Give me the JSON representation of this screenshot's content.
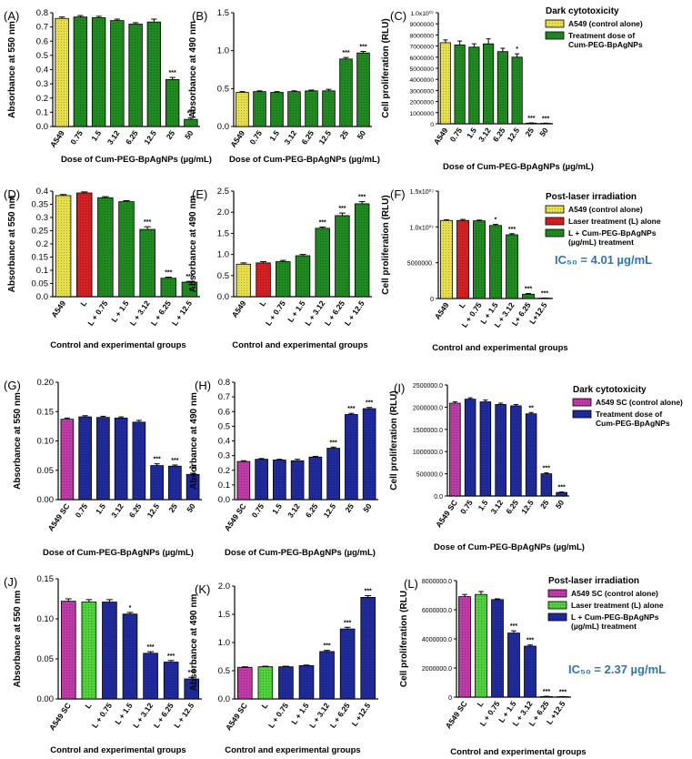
{
  "colors": {
    "yellow": "#e8e04a",
    "green": "#1f8a1f",
    "lightgreen": "#4fd23a",
    "red": "#d42020",
    "blue": "#1f2a9c",
    "magenta": "#c03aa8",
    "ic50": "#2e75b6"
  },
  "chart_data": [
    {
      "id": "A",
      "type": "bar",
      "panel": "(A)",
      "ylabel": "Absorbance at 550 nm",
      "xlabel": "Dose of Cum-PEG-BpAgNPs (µg/mL)",
      "categories": [
        "A549",
        "0.75",
        "1.5",
        "3.12",
        "6.25",
        "12.5",
        "25",
        "50"
      ],
      "values": [
        0.76,
        0.77,
        0.765,
        0.745,
        0.72,
        0.735,
        0.33,
        0.05
      ],
      "errors": [
        0.01,
        0.01,
        0.01,
        0.01,
        0.01,
        0.02,
        0.015,
        0.01
      ],
      "colors": [
        "yellow",
        "green",
        "green",
        "green",
        "green",
        "green",
        "green",
        "green"
      ],
      "sig": [
        "",
        "",
        "",
        "",
        "",
        "",
        "***",
        "***"
      ],
      "ylim": [
        0,
        0.8
      ],
      "yticks": [
        "0.0",
        "0.1",
        "0.2",
        "0.3",
        "0.4",
        "0.5",
        "0.6",
        "0.7",
        "0.8"
      ]
    },
    {
      "id": "B",
      "type": "bar",
      "panel": "(B)",
      "ylabel": "Absorbance at 490 nm",
      "xlabel": "Dose of Cum-PEG-BpAgNPs (µg/mL)",
      "categories": [
        "A549",
        "0.75",
        "1.5",
        "3.12",
        "6.25",
        "12.5",
        "25",
        "50"
      ],
      "values": [
        0.45,
        0.46,
        0.45,
        0.46,
        0.47,
        0.47,
        0.89,
        0.97
      ],
      "errors": [
        0.01,
        0.01,
        0.01,
        0.01,
        0.01,
        0.02,
        0.02,
        0.02
      ],
      "colors": [
        "yellow",
        "green",
        "green",
        "green",
        "green",
        "green",
        "green",
        "green"
      ],
      "sig": [
        "",
        "",
        "",
        "",
        "",
        "",
        "***",
        "***"
      ],
      "ylim": [
        0,
        1.5
      ],
      "yticks": [
        "0.0",
        "0.5",
        "1.0",
        "1.5"
      ]
    },
    {
      "id": "C",
      "type": "bar",
      "panel": "(C)",
      "ylabel": "Cell proliferation (RLU)",
      "xlabel": "Dose of Cum-PEG-BpAgNPs (µg/mL)",
      "categories": [
        "A549",
        "0.75",
        "1.5",
        "3.12",
        "6.25",
        "12.5",
        "25",
        "50"
      ],
      "values": [
        7300000,
        7100000,
        6900000,
        7200000,
        6500000,
        6000000,
        60000,
        40000
      ],
      "errors": [
        250000,
        350000,
        300000,
        450000,
        300000,
        300000,
        20000,
        20000
      ],
      "colors": [
        "yellow",
        "green",
        "green",
        "green",
        "green",
        "green",
        "green",
        "green"
      ],
      "sig": [
        "",
        "",
        "",
        "",
        "",
        "*",
        "***",
        "***"
      ],
      "ylim": [
        0,
        10000000
      ],
      "yticks": [
        "0",
        "1000000",
        "2000000",
        "3000000",
        "4000000",
        "5000000",
        "6000000",
        "7000000",
        "8000000",
        "9000000",
        "1.0x10⁰⁷"
      ],
      "legend_title": "Dark cytotoxicity",
      "legend": [
        {
          "color": "yellow",
          "label": "A549 (control alone)"
        },
        {
          "color": "green",
          "label": "Treatment dose of Cum-PEG-BpAgNPs"
        }
      ]
    },
    {
      "id": "D",
      "type": "bar",
      "panel": "(D)",
      "ylabel": "Absorbance at 550 nm",
      "xlabel": "Control and experimental groups",
      "categories": [
        "A549",
        "L",
        "L + 0.75",
        "L + 1.5",
        "L + 3.12",
        "L + 6.25",
        "L + 12.5"
      ],
      "values": [
        0.383,
        0.393,
        0.375,
        0.36,
        0.255,
        0.07,
        0.055
      ],
      "errors": [
        0.004,
        0.004,
        0.004,
        0.004,
        0.01,
        0.004,
        0.003
      ],
      "colors": [
        "yellow",
        "red",
        "green",
        "green",
        "green",
        "green",
        "green"
      ],
      "sig": [
        "",
        "",
        "",
        "",
        "***",
        "***",
        "***"
      ],
      "ylim": [
        0,
        0.4
      ],
      "yticks": [
        "0.0",
        "0.05",
        "0.1",
        "0.15",
        "0.2",
        "0.25",
        "0.3",
        "0.35",
        "0.4"
      ]
    },
    {
      "id": "E",
      "type": "bar",
      "panel": "(E)",
      "ylabel": "Absorbance at 490 nm",
      "xlabel": "Control and experimental groups",
      "categories": [
        "A549",
        "L",
        "L + 0.75",
        "L + 1.5",
        "L + 3.12",
        "L + 6.25",
        "L + 12.5"
      ],
      "values": [
        0.77,
        0.8,
        0.83,
        0.97,
        1.62,
        1.92,
        2.2
      ],
      "errors": [
        0.03,
        0.03,
        0.03,
        0.03,
        0.03,
        0.06,
        0.05
      ],
      "colors": [
        "yellow",
        "red",
        "green",
        "green",
        "green",
        "green",
        "green"
      ],
      "sig": [
        "",
        "",
        "",
        "",
        "***",
        "***",
        "***"
      ],
      "ylim": [
        0,
        2.5
      ],
      "yticks": [
        "0.0",
        "0.5",
        "1.0",
        "1.5",
        "2.0",
        "2.5"
      ]
    },
    {
      "id": "F",
      "type": "bar",
      "panel": "(F)",
      "ylabel": "Cell proliferation (RLU)",
      "xlabel": "Control and experimental groups",
      "categories": [
        "A549",
        "L",
        "L + 0.75",
        "L + 1.5",
        "L + 3.12",
        "L+ 6.25",
        "L+12.5"
      ],
      "values": [
        10900000,
        10900000,
        10850000,
        10200000,
        8900000,
        600000,
        50000
      ],
      "errors": [
        100000,
        150000,
        100000,
        150000,
        150000,
        100000,
        20000
      ],
      "colors": [
        "yellow",
        "red",
        "green",
        "green",
        "green",
        "green",
        "green"
      ],
      "sig": [
        "",
        "",
        "",
        "*",
        "***",
        "***",
        "***"
      ],
      "ylim": [
        0,
        15000000
      ],
      "yticks": [
        "0",
        "5000000.",
        "1.0x10⁰⁷",
        "1.5x10⁰⁷"
      ],
      "legend_title": "Post-laser irradiation",
      "legend": [
        {
          "color": "yellow",
          "label": "A549 (control alone)"
        },
        {
          "color": "red",
          "label": "Laser treatment (L) alone"
        },
        {
          "color": "green",
          "label": "L + Cum-PEG-BpAgNPs (µg/mL) treatment"
        }
      ],
      "ic50": "IC₅₀ = 4.01 µg/mL"
    },
    {
      "id": "G",
      "type": "bar",
      "panel": "(G)",
      "ylabel": "Absorbance at 550 nm",
      "xlabel": "Dose of Cum-PEG-BpAgNPs (µg/mL)",
      "categories": [
        "A549 SC",
        "0.75",
        "1.5",
        "3.12",
        "6.25",
        "12.5",
        "25",
        "50"
      ],
      "values": [
        0.137,
        0.141,
        0.14,
        0.139,
        0.132,
        0.058,
        0.057,
        0.043
      ],
      "errors": [
        0.002,
        0.002,
        0.002,
        0.002,
        0.003,
        0.003,
        0.002,
        0.002
      ],
      "colors": [
        "magenta",
        "blue",
        "blue",
        "blue",
        "blue",
        "blue",
        "blue",
        "blue"
      ],
      "sig": [
        "",
        "",
        "",
        "",
        "",
        "***",
        "***",
        "***"
      ],
      "ylim": [
        0,
        0.2
      ],
      "yticks": [
        "0.00",
        "0.05",
        "0.10",
        "0.15",
        "0.20"
      ]
    },
    {
      "id": "H",
      "type": "bar",
      "panel": "(H)",
      "ylabel": "Absorbance at 490 nm",
      "xlabel": "Dose of Cum-PEG-BpAgNPs (µg/mL)",
      "categories": [
        "A549 SC",
        "0.75",
        "1.5",
        "3.12",
        "6.25",
        "12.5",
        "25",
        "50"
      ],
      "values": [
        0.26,
        0.275,
        0.27,
        0.265,
        0.29,
        0.35,
        0.58,
        0.62
      ],
      "errors": [
        0.005,
        0.005,
        0.005,
        0.01,
        0.005,
        0.008,
        0.008,
        0.008
      ],
      "colors": [
        "magenta",
        "blue",
        "blue",
        "blue",
        "blue",
        "blue",
        "blue",
        "blue"
      ],
      "sig": [
        "",
        "",
        "",
        "",
        "",
        "***",
        "***",
        "***"
      ],
      "ylim": [
        0,
        0.8
      ],
      "yticks": [
        "0.0",
        "0.1",
        "0.2",
        "0.3",
        "0.4",
        "0.5",
        "0.6",
        "0.7",
        "0.8"
      ]
    },
    {
      "id": "I",
      "type": "bar",
      "panel": "(I)",
      "ylabel": "Cell proliferation (RLU)",
      "xlabel": "Dose of Cum-PEG-BpAgNPs (µg/mL)",
      "categories": [
        "A549 SC",
        "0.75",
        "1.5",
        "3.12",
        "6.25",
        "12.5",
        "25",
        "50"
      ],
      "values": [
        2090000,
        2180000,
        2120000,
        2060000,
        2030000,
        1850000,
        500000,
        80000
      ],
      "errors": [
        30000,
        30000,
        40000,
        30000,
        30000,
        30000,
        20000,
        10000
      ],
      "colors": [
        "magenta",
        "blue",
        "blue",
        "blue",
        "blue",
        "blue",
        "blue",
        "blue"
      ],
      "sig": [
        "",
        "",
        "",
        "",
        "",
        "**",
        "***",
        "***"
      ],
      "ylim": [
        0,
        2500000
      ],
      "yticks": [
        "0.0",
        "500000.0",
        "1000000.0",
        "1500000.0",
        "2000000.0",
        "2500000.0"
      ],
      "legend_title": "Dark cytotoxicity",
      "legend": [
        {
          "color": "magenta",
          "label": "A549 SC (control alone)"
        },
        {
          "color": "blue",
          "label": "Treatment dose of Cum-PEG-BpAgNPs"
        }
      ]
    },
    {
      "id": "J",
      "type": "bar",
      "panel": "(J)",
      "ylabel": "Absorbance at 550 nm",
      "xlabel": "Control and experimental groups",
      "categories": [
        "A549 SC",
        "L",
        "L + 0.75",
        "L + 1.5",
        "L + 3.12",
        "L + 6.25",
        "L + 12.5"
      ],
      "values": [
        0.122,
        0.121,
        0.121,
        0.106,
        0.057,
        0.046,
        0.025
      ],
      "errors": [
        0.003,
        0.003,
        0.003,
        0.002,
        0.002,
        0.002,
        0.002
      ],
      "colors": [
        "magenta",
        "lightgreen",
        "blue",
        "blue",
        "blue",
        "blue",
        "blue"
      ],
      "sig": [
        "",
        "",
        "",
        "*",
        "***",
        "***",
        "***"
      ],
      "ylim": [
        0,
        0.15
      ],
      "yticks": [
        "0.00",
        "0.05",
        "0.10",
        "0.15"
      ]
    },
    {
      "id": "K",
      "type": "bar",
      "panel": "(K)",
      "ylabel": "Absorbance at 490 nm",
      "xlabel": "Control and experimental groups",
      "categories": [
        "A549 SC",
        "L",
        "L + 0.75",
        "L + 1.5",
        "L + 3.12",
        "L + 6.25",
        "L +12.5"
      ],
      "values": [
        0.56,
        0.57,
        0.57,
        0.59,
        0.84,
        1.24,
        1.8
      ],
      "errors": [
        0.01,
        0.01,
        0.01,
        0.01,
        0.02,
        0.03,
        0.03
      ],
      "colors": [
        "magenta",
        "lightgreen",
        "blue",
        "blue",
        "blue",
        "blue",
        "blue"
      ],
      "sig": [
        "",
        "",
        "",
        "",
        "***",
        "***",
        "***"
      ],
      "ylim": [
        0,
        2.0
      ],
      "yticks": [
        "0.0",
        "0.5",
        "1.0",
        "1.5",
        "2.0"
      ]
    },
    {
      "id": "L",
      "type": "bar",
      "panel": "(L)",
      "ylabel": "Cell proliferation (RLU",
      "xlabel": "Control and experimental groups",
      "categories": [
        "A549 SC",
        "L",
        "L + 0.75",
        "L + 1.5",
        "L + 3.12",
        "L + 6.25",
        "L +12.5"
      ],
      "values": [
        6900000,
        7050000,
        6700000,
        4400000,
        3500000,
        40000,
        30000
      ],
      "errors": [
        150000,
        200000,
        50000,
        150000,
        80000,
        20000,
        10000
      ],
      "colors": [
        "magenta",
        "lightgreen",
        "blue",
        "blue",
        "blue",
        "blue",
        "blue"
      ],
      "sig": [
        "",
        "",
        "",
        "***",
        "***",
        "***",
        "***"
      ],
      "ylim": [
        0,
        8000000
      ],
      "yticks": [
        "0",
        "2000000.0",
        "4000000.0",
        "6000000.0",
        "8000000.0"
      ],
      "legend_title": "Post-laser irradiation",
      "legend": [
        {
          "color": "magenta",
          "label": "A549 SC (control alone)"
        },
        {
          "color": "lightgreen",
          "label": "Laser treatment (L) alone"
        },
        {
          "color": "blue",
          "label": "L + Cum-PEG-BpAgNPs (µg/mL) treatment"
        }
      ],
      "ic50": "IC₅₀ = 2.37 µg/mL"
    }
  ]
}
